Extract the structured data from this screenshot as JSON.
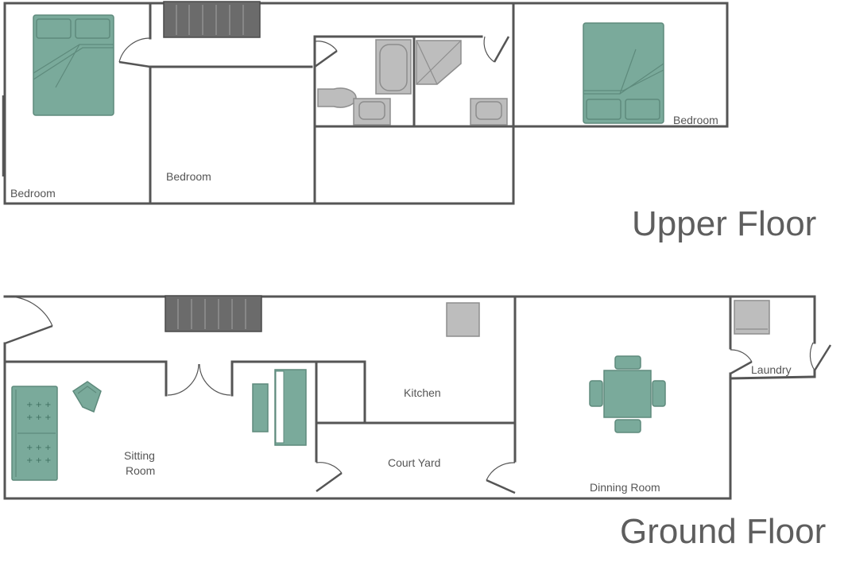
{
  "titles": {
    "upper": "Upper Floor",
    "ground": "Ground Floor"
  },
  "upper_rooms": {
    "bedroom_left": "Bedroom",
    "bedroom_middle": "Bedroom",
    "bedroom_right": "Bedroom"
  },
  "ground_rooms": {
    "sitting_line1": "Sitting",
    "sitting_line2": "Room",
    "kitchen": "Kitchen",
    "court_yard": "Court Yard",
    "dinning_room": "Dinning Room",
    "laundry": "Laundry"
  },
  "colors": {
    "wall": "#555555",
    "furniture": "#7aaa9b",
    "fixture": "#bdbdbd",
    "stairs": "#6b6b6b"
  }
}
